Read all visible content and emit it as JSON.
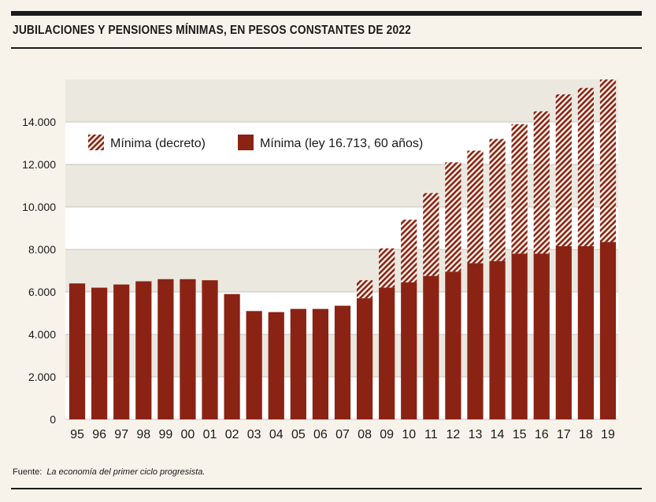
{
  "title": "JUBILACIONES Y PENSIONES MÍNIMAS, EN PESOS CONSTANTES DE 2022",
  "source": {
    "label": "Fuente:",
    "note": "La economía del primer ciclo progresista."
  },
  "colors": {
    "bar": "#8b2314",
    "band": "#ebe8e0",
    "background": "#f8f3ea"
  },
  "chart_data": {
    "type": "bar",
    "title": "JUBILACIONES Y PENSIONES MÍNIMAS, EN PESOS CONSTANTES DE 2022",
    "xlabel": "",
    "ylabel": "",
    "ylim": [
      0,
      16000
    ],
    "yticks": [
      0,
      2000,
      4000,
      6000,
      8000,
      10000,
      12000,
      14000
    ],
    "ytick_labels": [
      "0",
      "2.000",
      "4.000",
      "6.000",
      "8.000",
      "10.000",
      "12.000",
      "14.000"
    ],
    "categories": [
      "95",
      "96",
      "97",
      "98",
      "99",
      "00",
      "01",
      "02",
      "03",
      "04",
      "05",
      "06",
      "07",
      "08",
      "09",
      "10",
      "11",
      "12",
      "13",
      "14",
      "15",
      "16",
      "17",
      "18",
      "19"
    ],
    "series": [
      {
        "name": "Mínima (ley 16.713, 60 años)",
        "style": "solid",
        "values": [
          6400,
          6200,
          6350,
          6500,
          6600,
          6600,
          6550,
          5900,
          5100,
          5050,
          5200,
          5200,
          5350,
          5700,
          6200,
          6450,
          6750,
          6950,
          7350,
          7450,
          7800,
          7800,
          8150,
          8150,
          8350
        ]
      },
      {
        "name": "Mínima (decreto)",
        "style": "hatched",
        "values": [
          null,
          null,
          null,
          null,
          null,
          null,
          null,
          null,
          null,
          null,
          null,
          null,
          null,
          6550,
          8050,
          9400,
          10650,
          12100,
          12650,
          13200,
          13900,
          14500,
          15300,
          15600,
          16000
        ]
      }
    ],
    "legend": [
      {
        "label": "Mínima (decreto)",
        "style": "hatched"
      },
      {
        "label": "Mínima (ley 16.713, 60 años)",
        "style": "solid"
      }
    ],
    "legend_position": "top-left",
    "grid": true
  }
}
